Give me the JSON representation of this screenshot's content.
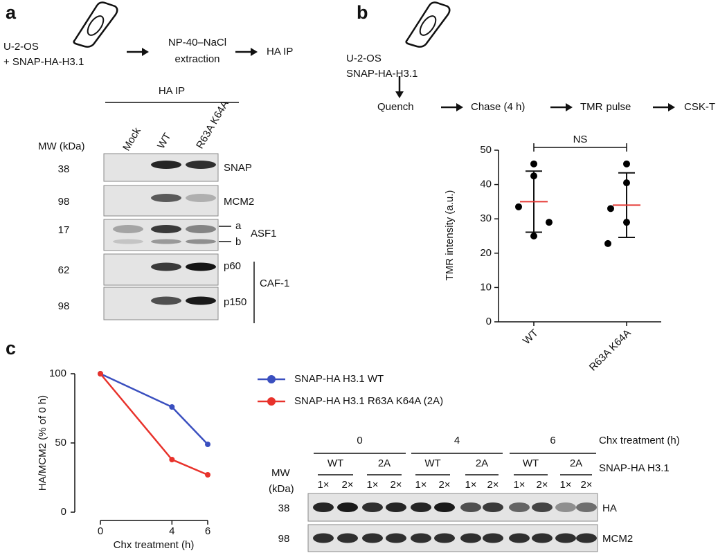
{
  "panel_a": {
    "label": "a",
    "cell_line": [
      "U-2-OS",
      "+ SNAP-HA-H3.1"
    ],
    "extraction": [
      "NP-40–NaCl",
      "extraction"
    ],
    "ip": "HA IP",
    "blot": {
      "header": "HA IP",
      "lanes": [
        "Mock",
        "WT",
        "R63A K64A"
      ],
      "mw_title": "MW (kDa)",
      "rows": [
        {
          "mw": "38",
          "label": "SNAP"
        },
        {
          "mw": "98",
          "label": "MCM2"
        },
        {
          "mw": "17",
          "label": "ASF1",
          "bands": [
            "a",
            "b"
          ]
        },
        {
          "mw": "62",
          "label": "p60"
        },
        {
          "mw": "98",
          "label": "p150"
        }
      ],
      "complex": "CAF-1"
    }
  },
  "panel_b": {
    "label": "b",
    "cell_line": [
      "U-2-OS",
      "SNAP-HA-H3.1"
    ],
    "steps": [
      "Quench",
      "Chase (4 h)"
    ],
    "pulse": {
      "highlight": "TMR",
      "text": "pulse"
    },
    "final_step": "CSK-T"
  },
  "chart_data": [
    {
      "type": "scatter",
      "ylabel": "TMR intensity (a.u.)",
      "categories": [
        "WT",
        "R63A K64A"
      ],
      "points": [
        [
          46,
          42.5,
          33.5,
          29,
          25
        ],
        [
          46,
          40.5,
          33,
          29,
          22.8
        ]
      ],
      "means": [
        35,
        34
      ],
      "errors": [
        8.9,
        9.4
      ],
      "point_color": "#000000",
      "mean_color": "#e53935",
      "annotation": "NS",
      "ylim": [
        0,
        50
      ],
      "yticks": [
        0,
        10,
        20,
        30,
        40,
        50
      ]
    },
    {
      "type": "line",
      "xlabel": "Chx treatment (h)",
      "ylabel": "HA/MCM2 (% of 0 h)",
      "x": [
        0,
        4,
        6
      ],
      "series": [
        {
          "name": "SNAP-HA H3.1 WT",
          "color": "#3a4fbf",
          "values": [
            100,
            76,
            49
          ]
        },
        {
          "name": "SNAP-HA H3.1 R63A K64A (2A)",
          "color": "#e8322b",
          "values": [
            100,
            38,
            27
          ]
        }
      ],
      "xlim": [
        0,
        6
      ],
      "xticks": [
        0,
        4,
        6
      ],
      "ylim": [
        0,
        100
      ],
      "yticks": [
        0,
        50,
        100
      ]
    }
  ],
  "panel_c": {
    "label": "c",
    "blot": {
      "time_title": "Chx treatment (h)",
      "genotype_title": "SNAP-HA H3.1",
      "mw_title": [
        "MW",
        "(kDa)"
      ],
      "times": [
        {
          "time": "0",
          "groups": [
            {
              "name": "WT",
              "doses": [
                "1×",
                "2×"
              ]
            },
            {
              "name": "2A",
              "doses": [
                "1×",
                "2×"
              ]
            }
          ]
        },
        {
          "time": "4",
          "groups": [
            {
              "name": "WT",
              "doses": [
                "1×",
                "2×"
              ]
            },
            {
              "name": "2A",
              "doses": [
                "1×",
                "2×"
              ]
            }
          ]
        },
        {
          "time": "6",
          "groups": [
            {
              "name": "WT",
              "doses": [
                "1×",
                "2×"
              ]
            },
            {
              "name": "2A",
              "doses": [
                "1×",
                "2×"
              ]
            }
          ]
        }
      ],
      "rows": [
        {
          "mw": "38",
          "label": "HA"
        },
        {
          "mw": "98",
          "label": "MCM2"
        }
      ]
    }
  }
}
